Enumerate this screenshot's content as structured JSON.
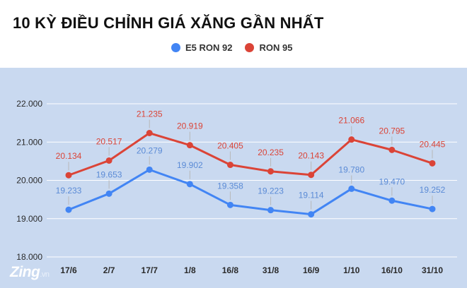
{
  "chart_data": {
    "type": "line",
    "title": "10 KỲ ĐIỀU CHỈNH GIÁ XĂNG GẦN NHẤT",
    "categories": [
      "17/6",
      "2/7",
      "17/7",
      "1/8",
      "16/8",
      "31/8",
      "16/9",
      "1/10",
      "16/10",
      "31/10"
    ],
    "y_ticks": [
      "18.000",
      "19.000",
      "20.000",
      "21.000",
      "22.000"
    ],
    "ylim": [
      18,
      22
    ],
    "grid": true,
    "legend_position": "top",
    "series": [
      {
        "name": "E5 RON 92",
        "color": "#4285f4",
        "label_color": "#5b8bd6",
        "values": [
          19.233,
          19.653,
          20.279,
          19.902,
          19.358,
          19.223,
          19.114,
          19.78,
          19.47,
          19.252
        ],
        "labels": [
          "19.233",
          "19.653",
          "20.279",
          "19.902",
          "19.358",
          "19.223",
          "19.114",
          "19.780",
          "19.470",
          "19.252"
        ]
      },
      {
        "name": "RON 95",
        "color": "#db4437",
        "label_color": "#db4437",
        "values": [
          20.134,
          20.517,
          21.235,
          20.919,
          20.405,
          20.235,
          20.143,
          21.066,
          20.795,
          20.445
        ],
        "labels": [
          "20.134",
          "20.517",
          "21.235",
          "20.919",
          "20.405",
          "20.235",
          "20.143",
          "21.066",
          "20.795",
          "20.445"
        ]
      }
    ]
  },
  "watermark": {
    "brand": "Zing",
    "suffix": ".vn"
  }
}
